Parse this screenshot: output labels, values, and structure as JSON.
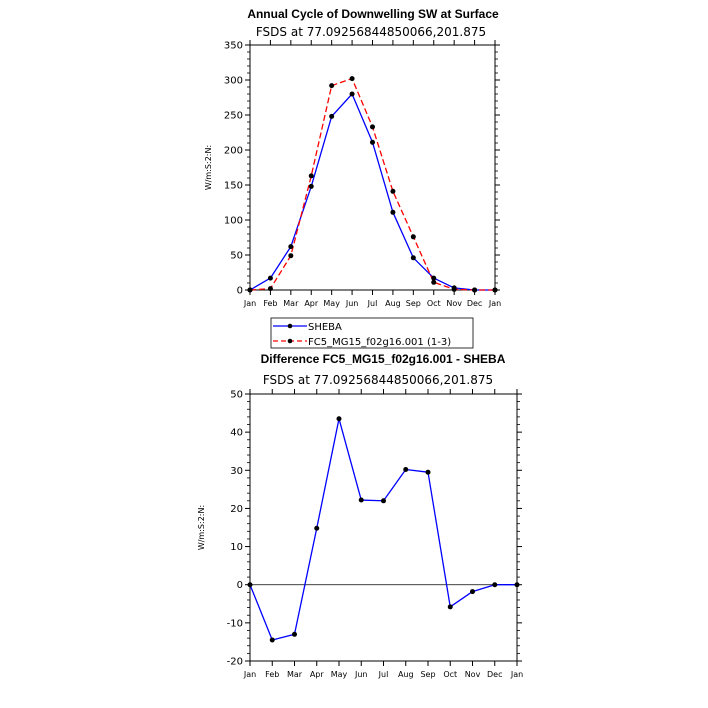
{
  "chart_data": [
    {
      "type": "line",
      "title": "Annual Cycle of Downwelling SW at Surface",
      "subtitle": "FSDS at 77.09256844850066,201.875",
      "xlabel": "",
      "ylabel": "W/m:S:2:N:",
      "ylim": [
        0,
        350
      ],
      "yticks": [
        0,
        50,
        100,
        150,
        200,
        250,
        300,
        350
      ],
      "categories": [
        "Jan",
        "Feb",
        "Mar",
        "Apr",
        "May",
        "Jun",
        "Jul",
        "Aug",
        "Sep",
        "Oct",
        "Nov",
        "Dec",
        "Jan"
      ],
      "series": [
        {
          "name": "SHEBA",
          "color": "#0000ff",
          "dash": "solid",
          "values": [
            0,
            17,
            62,
            148,
            248,
            280,
            211,
            111,
            46,
            17,
            3,
            0,
            0
          ]
        },
        {
          "name": "FC5_MG15_f02g16.001 (1-3)",
          "color": "#ff0000",
          "dash": "dashed",
          "values": [
            0,
            2,
            49,
            163,
            292,
            302,
            233,
            141,
            76,
            11,
            1,
            0,
            0
          ]
        }
      ],
      "legend": "bottom-left"
    },
    {
      "type": "line",
      "title": "Difference FC5_MG15_f02g16.001 - SHEBA",
      "subtitle": "FSDS at 77.09256844850066,201.875",
      "xlabel": "",
      "ylabel": "W/m:S:2:N:",
      "ylim": [
        -20,
        50
      ],
      "yticks": [
        -20,
        -10,
        0,
        10,
        20,
        30,
        40,
        50
      ],
      "categories": [
        "Jan",
        "Feb",
        "Mar",
        "Apr",
        "May",
        "Jun",
        "Jul",
        "Aug",
        "Sep",
        "Oct",
        "Nov",
        "Dec",
        "Jan"
      ],
      "series": [
        {
          "name": "Difference",
          "color": "#0000ff",
          "dash": "solid",
          "values": [
            0,
            -14.5,
            -13,
            14.8,
            43.5,
            22.2,
            22,
            30.2,
            29.5,
            -5.8,
            -1.8,
            0,
            0
          ]
        }
      ],
      "zero_line": true
    }
  ]
}
